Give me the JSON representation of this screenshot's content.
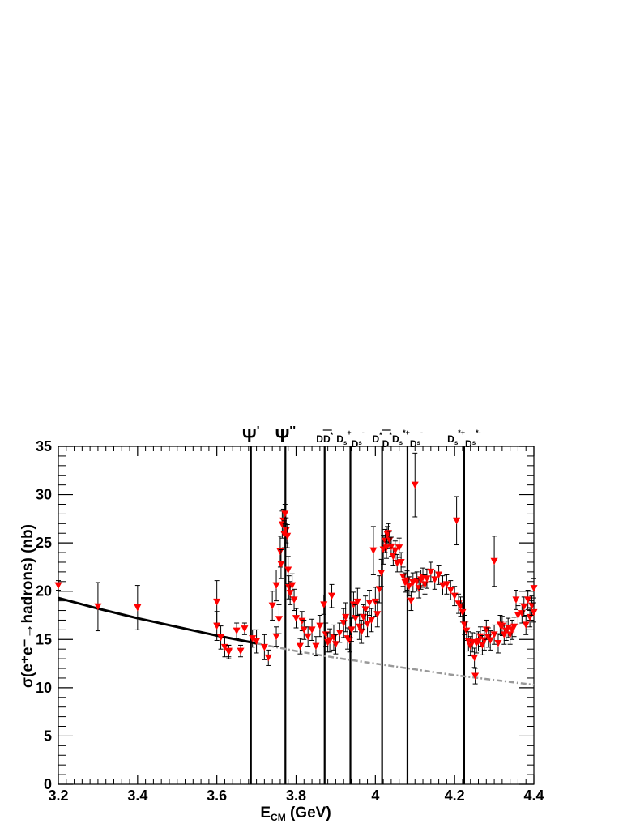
{
  "chart_data": {
    "type": "scatter",
    "title": "",
    "xlabel": "E",
    "xlabel_sub": "CM",
    "xlabel_unit": " (GeV)",
    "ylabel": "σ(e⁺e⁻→hadrons) (nb)",
    "xlim": [
      3.2,
      4.4
    ],
    "ylim": [
      0,
      35
    ],
    "x_ticks": [
      3.2,
      3.4,
      3.6,
      3.8,
      4,
      4.2,
      4.4
    ],
    "x_tick_labels": [
      "3.2",
      "3.4",
      "3.6",
      "3.8",
      "4",
      "4.2",
      "4.4"
    ],
    "y_ticks": [
      0,
      5,
      10,
      15,
      20,
      25,
      30,
      35
    ],
    "y_tick_labels": [
      "0",
      "5",
      "10",
      "15",
      "20",
      "25",
      "30",
      "35"
    ],
    "grid": false,
    "marker": "down-triangle",
    "colors": {
      "points": "#ff0000",
      "errorbars": "#000000",
      "fit": "#000000",
      "extrapolation": "#999999"
    },
    "thresholds": [
      {
        "label": "Ψ'",
        "x": 3.686
      },
      {
        "label": "Ψ''",
        "x": 3.773
      },
      {
        "label": "DD̄*",
        "x": 3.872
      },
      {
        "label": "D_s⁺D_s⁻",
        "x": 3.937
      },
      {
        "label": "D*D̄*",
        "x": 4.017
      },
      {
        "label": "D_s*⁺D_s⁻",
        "x": 4.081
      },
      {
        "label": "D_s*⁺D_s*⁻",
        "x": 4.224
      }
    ],
    "fit_curve": {
      "name": "",
      "x": [
        3.2,
        3.3,
        3.4,
        3.5,
        3.6,
        3.7
      ],
      "y": [
        19.3,
        18.2,
        17.2,
        16.3,
        15.4,
        14.6
      ]
    },
    "extrapolation": {
      "name": "",
      "x": [
        3.7,
        3.8,
        3.9,
        4.0,
        4.1,
        4.2,
        4.3,
        4.4
      ],
      "y": [
        14.6,
        13.8,
        13.1,
        12.5,
        11.9,
        11.3,
        10.8,
        10.3
      ]
    },
    "series": [
      {
        "name": "",
        "points": [
          [
            3.2,
            20.6,
            0.5
          ],
          [
            3.3,
            18.4,
            2.5
          ],
          [
            3.4,
            18.3,
            2.3
          ],
          [
            3.6,
            18.9,
            2.2
          ],
          [
            3.6,
            16.4,
            1.5
          ],
          [
            3.61,
            15.2,
            1.2
          ],
          [
            3.62,
            14.2,
            1.0
          ],
          [
            3.63,
            13.7,
            0.7
          ],
          [
            3.63,
            13.8,
            0.6
          ],
          [
            3.65,
            15.9,
            0.8
          ],
          [
            3.66,
            13.8,
            0.6
          ],
          [
            3.67,
            16.1,
            0.6
          ],
          [
            3.69,
            15.1,
            0.9
          ],
          [
            3.7,
            14.8,
            1.2
          ],
          [
            3.72,
            14.2,
            1.3
          ],
          [
            3.73,
            13.1,
            0.8
          ],
          [
            3.74,
            18.5,
            1.5
          ],
          [
            3.75,
            15.3,
            1.0
          ],
          [
            3.75,
            20.6,
            1.6
          ],
          [
            3.757,
            17.1,
            1.5
          ],
          [
            3.76,
            24.1,
            1.6
          ],
          [
            3.762,
            22.8,
            1.5
          ],
          [
            3.765,
            26.9,
            1.4
          ],
          [
            3.768,
            27.3,
            1.2
          ],
          [
            3.77,
            25.9,
            1.4
          ],
          [
            3.772,
            28.0,
            1.0
          ],
          [
            3.775,
            26.3,
            1.3
          ],
          [
            3.778,
            25.7,
            1.2
          ],
          [
            3.78,
            22.2,
            1.4
          ],
          [
            3.782,
            20.4,
            1.2
          ],
          [
            3.785,
            19.8,
            1.2
          ],
          [
            3.79,
            20.6,
            1.2
          ],
          [
            3.795,
            19.1,
            1.1
          ],
          [
            3.8,
            17.2,
            1.0
          ],
          [
            3.81,
            14.3,
            0.8
          ],
          [
            3.815,
            16.9,
            1.0
          ],
          [
            3.82,
            16.0,
            1.0
          ],
          [
            3.83,
            15.3,
            1.0
          ],
          [
            3.84,
            16.0,
            1.1
          ],
          [
            3.85,
            14.3,
            1.0
          ],
          [
            3.86,
            16.4,
            1.1
          ],
          [
            3.87,
            18.6,
            1.0
          ],
          [
            3.875,
            15.5,
            1.2
          ],
          [
            3.88,
            14.7,
            1.0
          ],
          [
            3.885,
            14.9,
            1.2
          ],
          [
            3.89,
            19.5,
            1.2
          ],
          [
            3.895,
            15.2,
            1.3
          ],
          [
            3.9,
            14.5,
            1.0
          ],
          [
            3.91,
            15.7,
            1.0
          ],
          [
            3.92,
            16.7,
            1.5
          ],
          [
            3.925,
            17.3,
            1.5
          ],
          [
            3.93,
            15.1,
            1.1
          ],
          [
            3.935,
            14.9,
            1.2
          ],
          [
            3.94,
            16.0,
            1.2
          ],
          [
            3.945,
            18.6,
            1.3
          ],
          [
            3.95,
            17.2,
            1.4
          ],
          [
            3.955,
            18.9,
            1.4
          ],
          [
            3.96,
            16.3,
            1.3
          ],
          [
            3.965,
            15.8,
            1.2
          ],
          [
            3.97,
            17.3,
            1.3
          ],
          [
            3.975,
            18.1,
            1.4
          ],
          [
            3.98,
            16.6,
            1.3
          ],
          [
            3.985,
            18.8,
            1.3
          ],
          [
            3.99,
            17.0,
            1.2
          ],
          [
            3.995,
            24.2,
            2.5
          ],
          [
            4.0,
            18.9,
            1.5
          ],
          [
            4.005,
            17.6,
            1.3
          ],
          [
            4.01,
            20.2,
            1.4
          ],
          [
            4.015,
            21.9,
            1.4
          ],
          [
            4.02,
            24.3,
            1.5
          ],
          [
            4.025,
            25.2,
            1.2
          ],
          [
            4.028,
            24.5,
            1.1
          ],
          [
            4.03,
            25.9,
            0.8
          ],
          [
            4.033,
            26.0,
            1.0
          ],
          [
            4.036,
            25.3,
            0.9
          ],
          [
            4.04,
            24.6,
            1.0
          ],
          [
            4.045,
            23.6,
            0.9
          ],
          [
            4.05,
            24.2,
            1.0
          ],
          [
            4.055,
            22.9,
            0.9
          ],
          [
            4.06,
            24.5,
            1.0
          ],
          [
            4.065,
            23.0,
            1.0
          ],
          [
            4.07,
            21.5,
            1.0
          ],
          [
            4.075,
            20.9,
            1.0
          ],
          [
            4.08,
            21.1,
            1.0
          ],
          [
            4.085,
            20.5,
            1.0
          ],
          [
            4.09,
            19.0,
            1.0
          ],
          [
            4.095,
            20.9,
            1.0
          ],
          [
            4.1,
            31.0,
            3.3
          ],
          [
            4.105,
            21.0,
            1.0
          ],
          [
            4.11,
            20.3,
            1.0
          ],
          [
            4.115,
            21.2,
            1.0
          ],
          [
            4.12,
            21.4,
            1.0
          ],
          [
            4.125,
            20.7,
            1.0
          ],
          [
            4.13,
            21.3,
            1.0
          ],
          [
            4.14,
            22.0,
            1.0
          ],
          [
            4.15,
            21.2,
            1.0
          ],
          [
            4.16,
            21.7,
            1.0
          ],
          [
            4.17,
            20.6,
            1.0
          ],
          [
            4.18,
            20.7,
            1.0
          ],
          [
            4.19,
            20.1,
            1.0
          ],
          [
            4.2,
            19.5,
            1.0
          ],
          [
            4.205,
            27.3,
            2.5
          ],
          [
            4.21,
            18.7,
            1.0
          ],
          [
            4.215,
            18.4,
            1.0
          ],
          [
            4.22,
            17.8,
            1.0
          ],
          [
            4.225,
            16.5,
            1.0
          ],
          [
            4.23,
            15.9,
            1.0
          ],
          [
            4.235,
            14.8,
            1.0
          ],
          [
            4.24,
            14.3,
            1.0
          ],
          [
            4.245,
            14.7,
            1.0
          ],
          [
            4.25,
            13.1,
            1.0
          ],
          [
            4.252,
            11.2,
            0.8
          ],
          [
            4.255,
            14.6,
            1.0
          ],
          [
            4.26,
            14.8,
            1.0
          ],
          [
            4.265,
            15.3,
            1.0
          ],
          [
            4.27,
            14.4,
            1.0
          ],
          [
            4.275,
            14.9,
            1.0
          ],
          [
            4.28,
            16.0,
            1.0
          ],
          [
            4.285,
            15.2,
            1.0
          ],
          [
            4.29,
            14.9,
            1.0
          ],
          [
            4.3,
            15.5,
            1.0
          ],
          [
            4.3,
            23.1,
            2.6
          ],
          [
            4.31,
            14.6,
            1.0
          ],
          [
            4.315,
            16.5,
            1.0
          ],
          [
            4.32,
            16.4,
            1.0
          ],
          [
            4.325,
            15.5,
            1.0
          ],
          [
            4.33,
            15.9,
            1.0
          ],
          [
            4.335,
            16.2,
            1.0
          ],
          [
            4.34,
            15.5,
            1.0
          ],
          [
            4.345,
            16.0,
            1.0
          ],
          [
            4.35,
            16.3,
            1.0
          ],
          [
            4.355,
            19.1,
            1.0
          ],
          [
            4.36,
            17.5,
            1.0
          ],
          [
            4.37,
            17.7,
            1.0
          ],
          [
            4.375,
            18.4,
            1.0
          ],
          [
            4.38,
            16.5,
            1.0
          ],
          [
            4.385,
            19.1,
            1.0
          ],
          [
            4.39,
            17.3,
            1.0
          ],
          [
            4.395,
            18.5,
            1.0
          ],
          [
            4.4,
            20.3,
            1.0
          ],
          [
            4.4,
            17.8,
            1.0
          ]
        ]
      }
    ]
  }
}
